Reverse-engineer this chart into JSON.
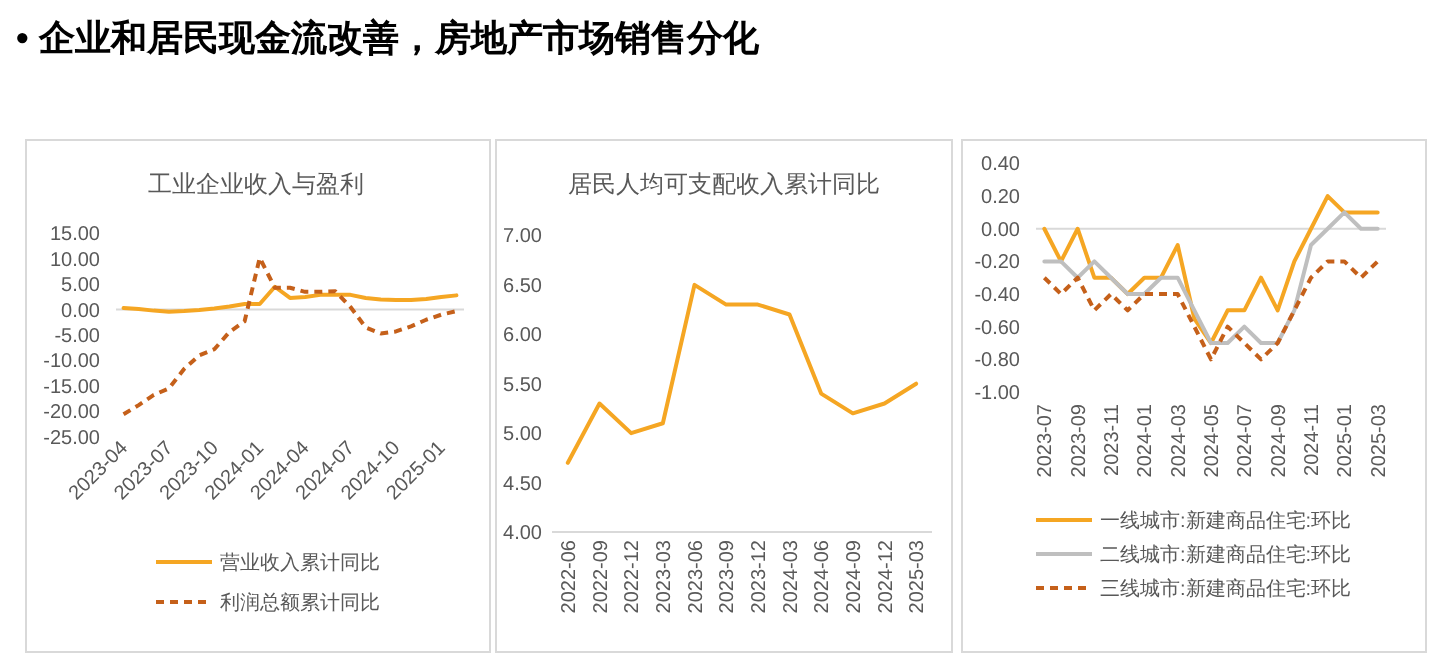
{
  "chart_data": [
    {
      "type": "other",
      "title": "•  企业和居民现金流改善，房地产市场销售分化"
    },
    {
      "type": "line",
      "title": "工业企业收入与盈利",
      "categories": [
        "2023-04",
        null,
        null,
        "2023-07",
        null,
        null,
        "2023-10",
        null,
        null,
        "2024-01",
        null,
        null,
        "2024-04",
        null,
        null,
        "2024-07",
        null,
        null,
        "2024-10",
        null,
        null,
        "2025-01",
        null
      ],
      "series": [
        {
          "name": "营业收入累计同比",
          "color": "#f5a623",
          "line_style": "solid",
          "values": [
            0.3,
            0.1,
            -0.2,
            -0.4,
            -0.3,
            -0.1,
            0.2,
            0.6,
            1.1,
            1.1,
            4.5,
            2.3,
            2.5,
            2.9,
            2.9,
            2.9,
            2.3,
            2.0,
            1.9,
            1.9,
            2.1,
            2.5,
            2.8
          ]
        },
        {
          "name": "利润总额累计同比",
          "color": "#c5601a",
          "line_style": "dashed",
          "values": [
            -20.6,
            -18.8,
            -16.8,
            -15.5,
            -11.7,
            -9.0,
            -7.8,
            -4.4,
            -2.3,
            10.2,
            4.3,
            4.3,
            3.5,
            3.5,
            3.6,
            0.5,
            -3.5,
            -4.7,
            -4.3,
            -3.3,
            -2.0,
            -1.0,
            -0.3
          ]
        }
      ],
      "ylim": [
        -25,
        15
      ],
      "yticks": [
        {
          "value": -25,
          "label": "-25.00"
        },
        {
          "value": -20,
          "label": "-20.00"
        },
        {
          "value": -15,
          "label": "-15.00"
        },
        {
          "value": -10,
          "label": "-10.00"
        },
        {
          "value": -5,
          "label": "-5.00"
        },
        {
          "value": 0,
          "label": "0.00"
        },
        {
          "value": 5,
          "label": "5.00"
        },
        {
          "value": 10,
          "label": "10.00"
        },
        {
          "value": 15,
          "label": "15.00"
        }
      ],
      "legend": "bottom"
    },
    {
      "type": "line",
      "title": "居民人均可支配收入累计同比",
      "categories": [
        "2022-06",
        "2022-09",
        "2022-12",
        "2023-03",
        "2023-06",
        "2023-09",
        "2023-12",
        "2024-03",
        "2024-06",
        "2024-09",
        "2024-12",
        "2025-03"
      ],
      "series": [
        {
          "color": "#f5a623",
          "line_style": "solid",
          "values": [
            4.7,
            5.3,
            5.0,
            5.1,
            6.5,
            6.3,
            6.3,
            6.2,
            5.4,
            5.2,
            5.3,
            5.5
          ]
        }
      ],
      "ylim": [
        4,
        7
      ],
      "yticks": [
        {
          "value": 4,
          "label": "4.00"
        },
        {
          "value": 4.5,
          "label": "4.50"
        },
        {
          "value": 5,
          "label": "5.00"
        },
        {
          "value": 5.5,
          "label": "5.50"
        },
        {
          "value": 6,
          "label": "6.00"
        },
        {
          "value": 6.5,
          "label": "6.50"
        },
        {
          "value": 7,
          "label": "7.00"
        }
      ],
      "grid": false,
      "legend": false
    },
    {
      "type": "line",
      "categories": [
        "2023-07",
        null,
        "2023-09",
        null,
        "2023-11",
        null,
        "2024-01",
        null,
        "2024-03",
        null,
        "2024-05",
        null,
        "2024-07",
        null,
        "2024-09",
        null,
        "2024-11",
        null,
        "2025-01",
        null,
        "2025-03"
      ],
      "series": [
        {
          "name": "一线城市:新建商品住宅:环比",
          "color": "#f5a623",
          "line_style": "solid",
          "values": [
            0.0,
            -0.2,
            0.0,
            -0.3,
            -0.3,
            -0.4,
            -0.3,
            -0.3,
            -0.1,
            -0.55,
            -0.7,
            -0.5,
            -0.5,
            -0.3,
            -0.5,
            -0.2,
            0.0,
            0.2,
            0.1,
            0.1,
            0.1
          ]
        },
        {
          "name": "二线城市:新建商品住宅:环比",
          "color": "#bfbfbf",
          "line_style": "solid",
          "values": [
            -0.2,
            -0.2,
            -0.3,
            -0.2,
            -0.3,
            -0.4,
            -0.4,
            -0.3,
            -0.3,
            -0.5,
            -0.7,
            -0.7,
            -0.6,
            -0.7,
            -0.7,
            -0.5,
            -0.1,
            0.0,
            0.1,
            0.0,
            0.0
          ]
        },
        {
          "name": "三线城市:新建商品住宅:环比",
          "color": "#c5601a",
          "line_style": "dashed",
          "values": [
            -0.3,
            -0.4,
            -0.3,
            -0.5,
            -0.4,
            -0.5,
            -0.4,
            -0.4,
            -0.4,
            -0.6,
            -0.8,
            -0.6,
            -0.7,
            -0.8,
            -0.7,
            -0.5,
            -0.3,
            -0.2,
            -0.2,
            -0.3,
            -0.2
          ]
        }
      ],
      "ylim": [
        -1,
        0.4
      ],
      "yticks": [
        {
          "value": -1,
          "label": "-1.00"
        },
        {
          "value": -0.8,
          "label": "-0.80"
        },
        {
          "value": -0.6,
          "label": "-0.60"
        },
        {
          "value": -0.4,
          "label": "-0.40"
        },
        {
          "value": -0.2,
          "label": "-0.20"
        },
        {
          "value": 0,
          "label": "0.00"
        },
        {
          "value": 0.2,
          "label": "0.20"
        },
        {
          "value": 0.4,
          "label": "0.40"
        }
      ],
      "legend": "bottom"
    }
  ]
}
